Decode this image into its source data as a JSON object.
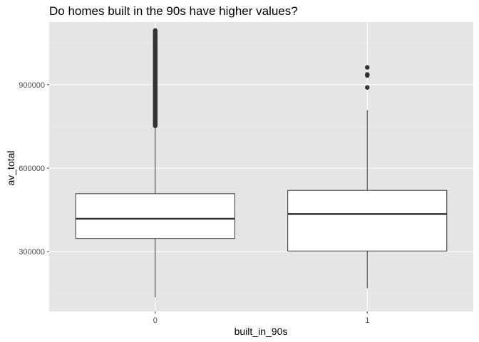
{
  "chart_data": {
    "type": "box",
    "title": "Do homes built in the 90s have higher values?",
    "xlabel": "built_in_90s",
    "ylabel": "av_total",
    "categories": [
      "0",
      "1"
    ],
    "ylim": [
      85000,
      1125000
    ],
    "y_ticks": [
      300000,
      600000,
      900000
    ],
    "y_tick_labels": [
      "300000",
      "600000",
      "900000"
    ],
    "grid": true,
    "colors": {
      "panel": "#e5e5e5",
      "grid_major": "#ffffff",
      "grid_minor": "#f0f0f0",
      "box_fill": "#ffffff",
      "box_line": "#333333",
      "outlier": "#333333"
    },
    "boxes": [
      {
        "category": "0",
        "min": 135000,
        "q1": 347000,
        "median": 418000,
        "q3": 508000,
        "whisker_high": 750000,
        "outlier_range": [
          752000,
          1095000
        ],
        "outliers": []
      },
      {
        "category": "1",
        "min": 168000,
        "q1": 302000,
        "median": 435000,
        "q3": 520000,
        "whisker_high": 808000,
        "outliers": [
          890000,
          933000,
          937000,
          962000
        ]
      }
    ]
  }
}
